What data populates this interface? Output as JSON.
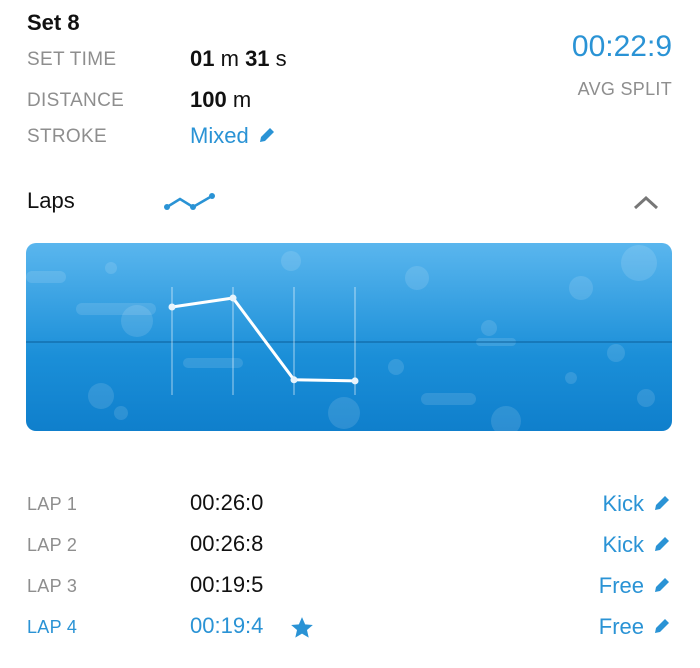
{
  "set": {
    "title": "Set 8",
    "set_time_label": "SET TIME",
    "set_time_min": "01",
    "set_time_min_unit": "m",
    "set_time_sec": "31",
    "set_time_sec_unit": "s",
    "distance_label": "DISTANCE",
    "distance_value": "100",
    "distance_unit": "m",
    "stroke_label": "STROKE",
    "stroke_value": "Mixed",
    "avg_split_value": "00:22:9",
    "avg_split_label": "AVG SPLIT"
  },
  "laps_section": {
    "title": "Laps",
    "icons": [
      "line-chart-icon",
      "chevron-up-icon"
    ],
    "expanded": true
  },
  "chart_data": {
    "type": "line",
    "categories": [
      "LAP 1",
      "LAP 2",
      "LAP 3",
      "LAP 4"
    ],
    "values": [
      26.0,
      26.8,
      19.5,
      19.4
    ],
    "grid": false
  },
  "laps": [
    {
      "label": "LAP 1",
      "time": "00:26:0",
      "stroke": "Kick",
      "best": false
    },
    {
      "label": "LAP 2",
      "time": "00:26:8",
      "stroke": "Kick",
      "best": false
    },
    {
      "label": "LAP 3",
      "time": "00:19:5",
      "stroke": "Free",
      "best": false
    },
    {
      "label": "LAP 4",
      "time": "00:19:4",
      "stroke": "Free",
      "best": true
    }
  ],
  "colors": {
    "accent": "#2a93d5",
    "label": "#8e8e8e",
    "chart_bg": "#1b8fd8"
  }
}
